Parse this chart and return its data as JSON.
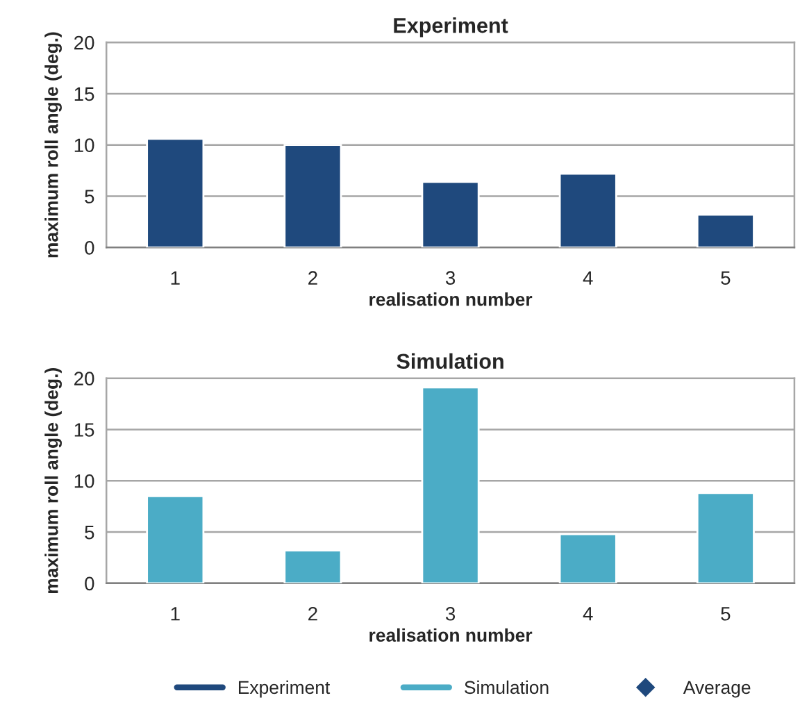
{
  "chart_data": [
    {
      "type": "bar",
      "title": "Experiment",
      "xlabel": "realisation number",
      "ylabel": "maximum roll angle (deg.)",
      "categories": [
        "1",
        "2",
        "3",
        "4",
        "5"
      ],
      "ylim": [
        0,
        20
      ],
      "yticks": [
        0,
        5,
        10,
        15,
        20
      ],
      "grid": "y",
      "legend": "bottom",
      "series": [
        {
          "name": "Experiment",
          "color": "#1f497d",
          "values": [
            10.6,
            10.0,
            6.4,
            7.2,
            3.2
          ]
        }
      ]
    },
    {
      "type": "bar",
      "title": "Simulation",
      "xlabel": "realisation number",
      "ylabel": "maximum roll angle (deg.)",
      "categories": [
        "1",
        "2",
        "3",
        "4",
        "5"
      ],
      "ylim": [
        0,
        20
      ],
      "yticks": [
        0,
        5,
        10,
        15,
        20
      ],
      "grid": "y",
      "legend": "bottom",
      "series": [
        {
          "name": "Simulation",
          "color": "#4bacc6",
          "values": [
            8.5,
            3.2,
            19.1,
            4.8,
            8.8
          ]
        },
        {
          "name": "Average",
          "type": "scatter",
          "marker": "diamond",
          "color": "#1f497d",
          "values": [
            null,
            null,
            null,
            null,
            null
          ]
        }
      ]
    }
  ]
}
